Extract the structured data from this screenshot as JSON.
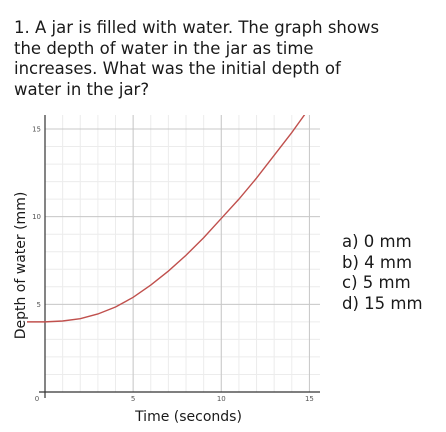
{
  "question": {
    "line1": "1. A jar is filled with water. The graph shows",
    "line2": "the depth of water in the jar as time",
    "line3": "increases. What was the initial depth of",
    "line4": "water in the jar?"
  },
  "choices": [
    "a)  0 mm",
    "b)  4 mm",
    "c)  5 mm",
    "d)  15 mm"
  ],
  "chart_data": {
    "type": "line",
    "xlabel": "Time (seconds)",
    "ylabel": "Depth of water  (mm)",
    "xlim": [
      0,
      15.6
    ],
    "ylim": [
      0,
      15.8
    ],
    "x_ticks": [
      "0",
      "5",
      "10",
      "15"
    ],
    "y_ticks": [
      "5",
      "10",
      "15"
    ],
    "grid": true,
    "line_color": "#c0504d",
    "series": [
      {
        "x": [
          0,
          1,
          2,
          3,
          4,
          5,
          6,
          7,
          8,
          9,
          10,
          11,
          12,
          13,
          14,
          15,
          15.5
        ],
        "values": [
          4,
          4.05,
          4.18,
          4.45,
          4.85,
          5.4,
          6.1,
          6.9,
          7.8,
          8.8,
          9.9,
          11.0,
          12.2,
          13.5,
          14.8,
          16.2,
          16.9
        ]
      }
    ]
  }
}
